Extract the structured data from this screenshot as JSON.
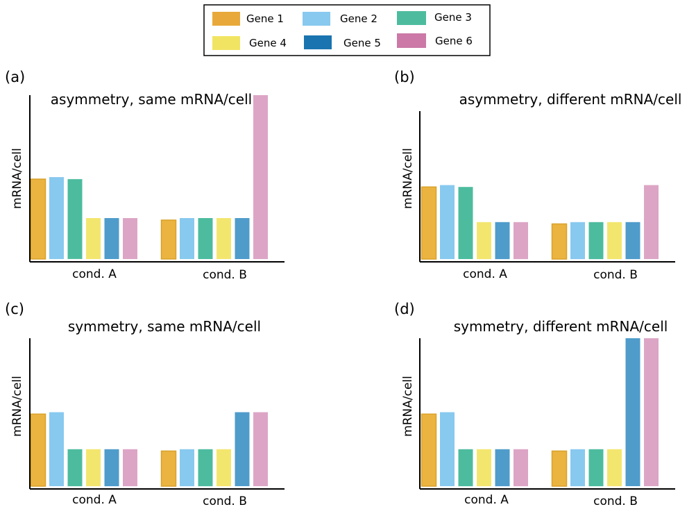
{
  "legend": [
    {
      "label": "Gene 1",
      "color": "#e8a93a"
    },
    {
      "label": "Gene 2",
      "color": "#88c9ef"
    },
    {
      "label": "Gene 3",
      "color": "#4dbc9e"
    },
    {
      "label": "Gene 4",
      "color": "#f1e463"
    },
    {
      "label": "Gene 5",
      "color": "#1a74b0"
    },
    {
      "label": "Gene 6",
      "color": "#cc79a7"
    }
  ],
  "chart_data": [
    {
      "type": "bar",
      "panel_label": "(a)",
      "title": "asymmetry, same mRNA/cell",
      "ylabel": "mRNA/cell",
      "categories": [
        "cond. A",
        "cond. B"
      ],
      "ylim": [
        0,
        4
      ],
      "series": [
        {
          "name": "Gene 1",
          "values": [
            1.95,
            0.95
          ]
        },
        {
          "name": "Gene 2",
          "values": [
            2.0,
            1.0
          ]
        },
        {
          "name": "Gene 3",
          "values": [
            1.95,
            1.0
          ]
        },
        {
          "name": "Gene 4",
          "values": [
            1.0,
            1.0
          ]
        },
        {
          "name": "Gene 5",
          "values": [
            1.0,
            1.0
          ]
        },
        {
          "name": "Gene 6",
          "values": [
            1.0,
            4.0
          ]
        }
      ]
    },
    {
      "type": "bar",
      "panel_label": "(b)",
      "title": "asymmetry, different mRNA/cell",
      "ylabel": "mRNA/cell",
      "categories": [
        "cond. A",
        "cond. B"
      ],
      "ylim": [
        0,
        4
      ],
      "series": [
        {
          "name": "Gene 1",
          "values": [
            1.95,
            0.95
          ]
        },
        {
          "name": "Gene 2",
          "values": [
            2.0,
            1.0
          ]
        },
        {
          "name": "Gene 3",
          "values": [
            1.95,
            1.0
          ]
        },
        {
          "name": "Gene 4",
          "values": [
            1.0,
            1.0
          ]
        },
        {
          "name": "Gene 5",
          "values": [
            1.0,
            1.0
          ]
        },
        {
          "name": "Gene 6",
          "values": [
            1.0,
            2.0
          ]
        }
      ]
    },
    {
      "type": "bar",
      "panel_label": "(c)",
      "title": "symmetry, same mRNA/cell",
      "ylabel": "mRNA/cell",
      "categories": [
        "cond. A",
        "cond. B"
      ],
      "ylim": [
        0,
        4
      ],
      "series": [
        {
          "name": "Gene 1",
          "values": [
            1.95,
            0.95
          ]
        },
        {
          "name": "Gene 2",
          "values": [
            2.0,
            1.0
          ]
        },
        {
          "name": "Gene 3",
          "values": [
            1.0,
            1.0
          ]
        },
        {
          "name": "Gene 4",
          "values": [
            1.0,
            1.0
          ]
        },
        {
          "name": "Gene 5",
          "values": [
            1.0,
            2.0
          ]
        },
        {
          "name": "Gene 6",
          "values": [
            1.0,
            2.0
          ]
        }
      ]
    },
    {
      "type": "bar",
      "panel_label": "(d)",
      "title": "symmetry, different mRNA/cell",
      "ylabel": "mRNA/cell",
      "categories": [
        "cond. A",
        "cond. B"
      ],
      "ylim": [
        0,
        4
      ],
      "series": [
        {
          "name": "Gene 1",
          "values": [
            1.95,
            0.95
          ]
        },
        {
          "name": "Gene 2",
          "values": [
            2.0,
            1.0
          ]
        },
        {
          "name": "Gene 3",
          "values": [
            1.0,
            1.0
          ]
        },
        {
          "name": "Gene 4",
          "values": [
            1.0,
            1.0
          ]
        },
        {
          "name": "Gene 5",
          "values": [
            1.0,
            4.0
          ]
        },
        {
          "name": "Gene 6",
          "values": [
            1.0,
            4.0
          ]
        }
      ]
    }
  ]
}
